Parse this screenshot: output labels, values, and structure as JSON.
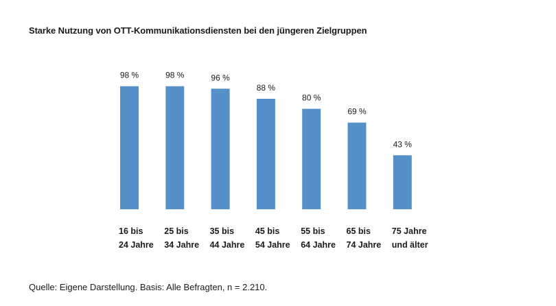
{
  "chart_data": {
    "type": "bar",
    "title": "Starke Nutzung von OTT-Kommunikationsdiensten bei den jüngeren Zielgruppen",
    "categories": [
      [
        "16 bis",
        "24 Jahre"
      ],
      [
        "25 bis",
        "34 Jahre"
      ],
      [
        "35 bis",
        "44 Jahre"
      ],
      [
        "45 bis",
        "54 Jahre"
      ],
      [
        "55 bis",
        "64 Jahre"
      ],
      [
        "65 bis",
        "74 Jahre"
      ],
      [
        "75 Jahre",
        "und älter"
      ]
    ],
    "values": [
      98,
      98,
      96,
      88,
      80,
      69,
      43
    ],
    "value_labels": [
      "98 %",
      "98 %",
      "96 %",
      "88 %",
      "80 %",
      "69 %",
      "43 %"
    ],
    "ylim": [
      0,
      100
    ],
    "grid": false,
    "bar_color": "#5590c9"
  },
  "source": "Quelle: Eigene Darstellung. Basis: Alle Befragten, n = 2.210."
}
